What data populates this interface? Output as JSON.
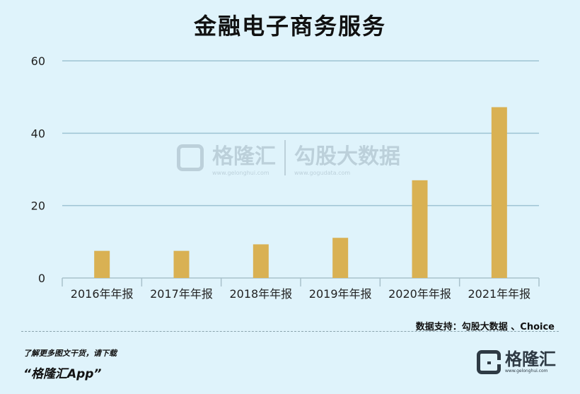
{
  "title": "金融电子商务服务",
  "source": "数据支持：勾股大数据 、Choice",
  "promo": {
    "line1": "了解更多图文干货，请下载",
    "line2": "“格隆汇App”"
  },
  "logo": {
    "name": "格隆汇",
    "url": "www.gelonghui.com"
  },
  "watermark": {
    "left_name": "格隆汇",
    "left_url": "www.gelonghui.com",
    "right_name": "勾股大数据",
    "right_url": "www.gogudata.com"
  },
  "chart_data": {
    "type": "bar",
    "categories": [
      "2016年年报",
      "2017年年报",
      "2018年年报",
      "2019年年报",
      "2020年年报",
      "2021年年报"
    ],
    "values": [
      7.5,
      7.5,
      9.3,
      11.1,
      27.0,
      47.2
    ],
    "ylim": [
      0,
      60
    ],
    "yticks": [
      0,
      20,
      40,
      60
    ],
    "bar_color": "#d9b153",
    "grid": true,
    "grid_color": "#9ec3d3",
    "xlabel": "",
    "ylabel": ""
  }
}
